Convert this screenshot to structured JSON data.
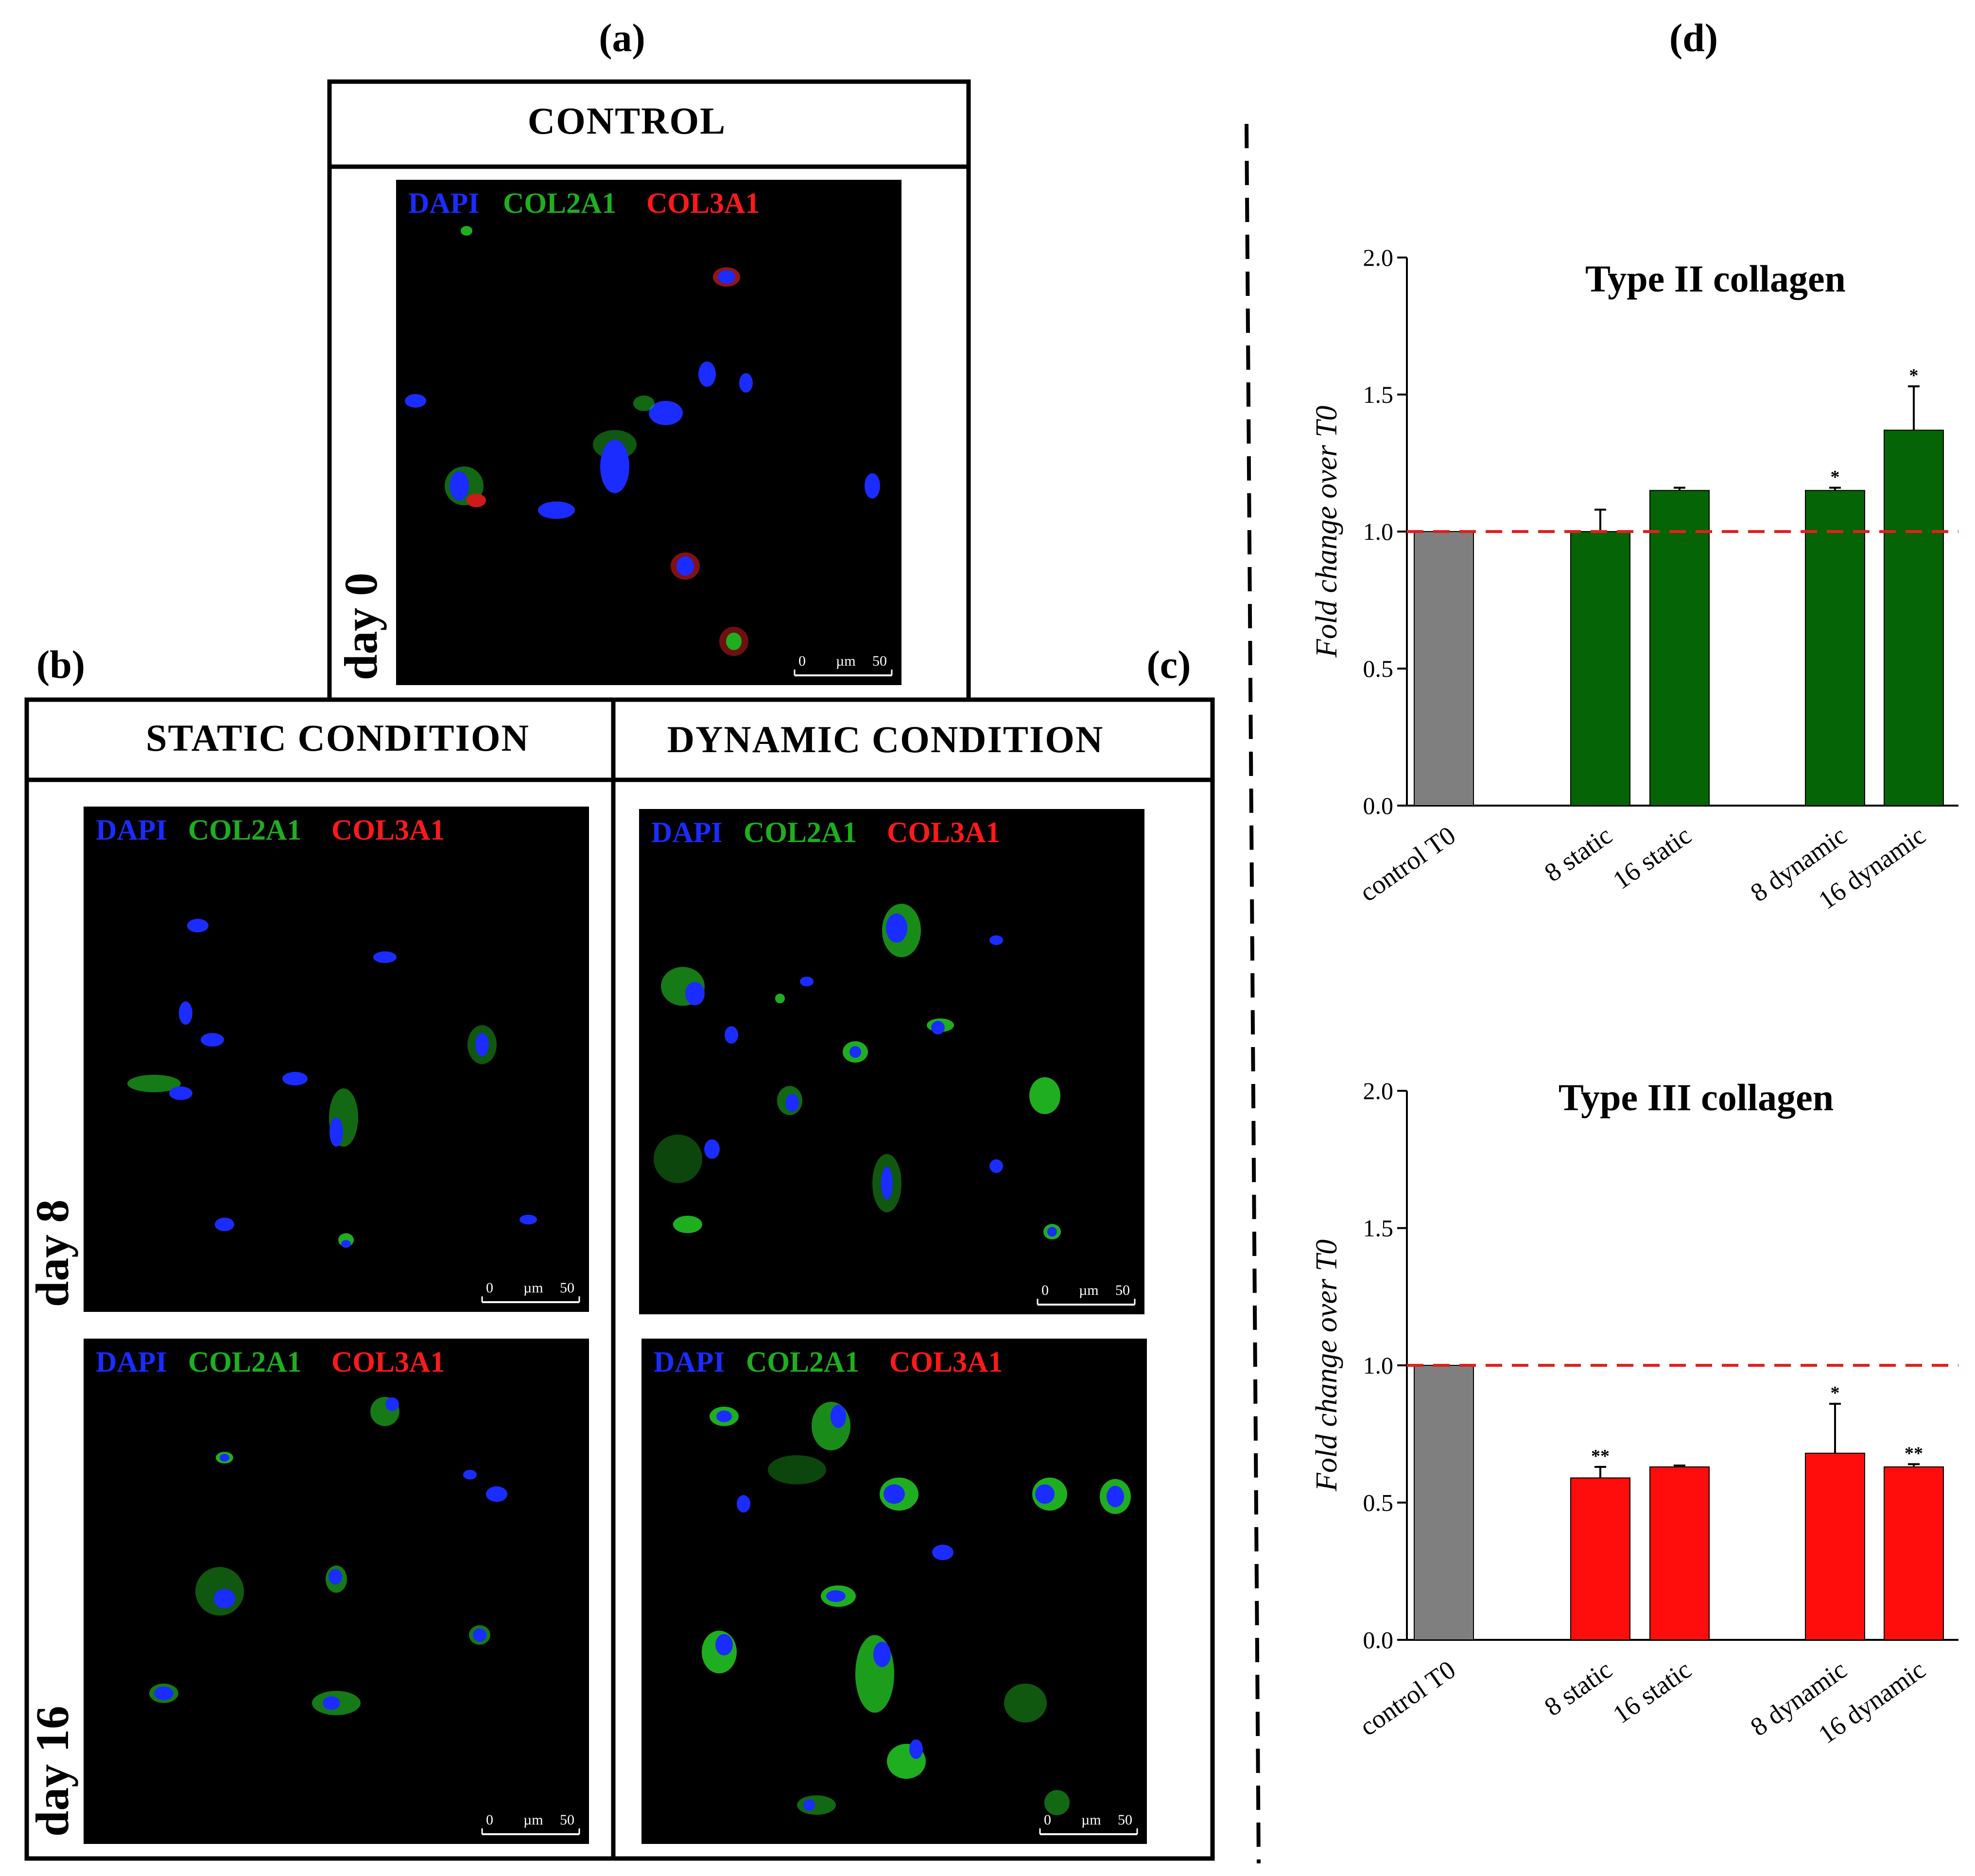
{
  "panels": {
    "a": "(a)",
    "b": "(b)",
    "c": "(c)",
    "d": "(d)"
  },
  "boxes": {
    "control": "CONTROL",
    "static": "STATIC CONDITION",
    "dynamic": "DYNAMIC CONDITION"
  },
  "days": {
    "d0": "day 0",
    "d8": "day 8",
    "d16": "day 16"
  },
  "stains": {
    "dapi": "DAPI",
    "col2": "COL2A1",
    "col3": "COL3A1"
  },
  "scalebar": {
    "zero": "0",
    "unit": "µm",
    "max": "50"
  },
  "colors": {
    "dapi": "#1a2cff",
    "col2": "#1fae1f",
    "col3": "#ff1a1a",
    "control_bar": "#7f7f7f",
    "green_bar": "#056405",
    "red_bar": "#ff0d0d",
    "reference_line": "#e0201b"
  },
  "chart_data": [
    {
      "type": "bar",
      "title": "Type II collagen",
      "ylabel": "Fold change over T0",
      "categories": [
        "control T0",
        "8 static",
        "16 static",
        "8 dynamic",
        "16 dynamic"
      ],
      "values": [
        1.0,
        1.0,
        1.15,
        1.15,
        1.37
      ],
      "errors": [
        0,
        0.08,
        0.01,
        0.01,
        0.16
      ],
      "significance": [
        "",
        "",
        "",
        "*",
        "*"
      ],
      "ylim": [
        0,
        2.0
      ],
      "yticks": [
        "0.0",
        "0.5",
        "1.0",
        "1.5",
        "2.0"
      ],
      "reference_line": 1.0
    },
    {
      "type": "bar",
      "title": "Type III collagen",
      "ylabel": "Fold change over T0",
      "categories": [
        "control T0",
        "8 static",
        "16 static",
        "8 dynamic",
        "16 dynamic"
      ],
      "values": [
        1.0,
        0.59,
        0.63,
        0.68,
        0.63
      ],
      "errors": [
        0,
        0.04,
        0.005,
        0.18,
        0.01
      ],
      "significance": [
        "",
        "**",
        "",
        "*",
        "**"
      ],
      "ylim": [
        0,
        2.0
      ],
      "yticks": [
        "0.0",
        "0.5",
        "1.0",
        "1.5",
        "2.0"
      ],
      "reference_line": 1.0
    }
  ]
}
